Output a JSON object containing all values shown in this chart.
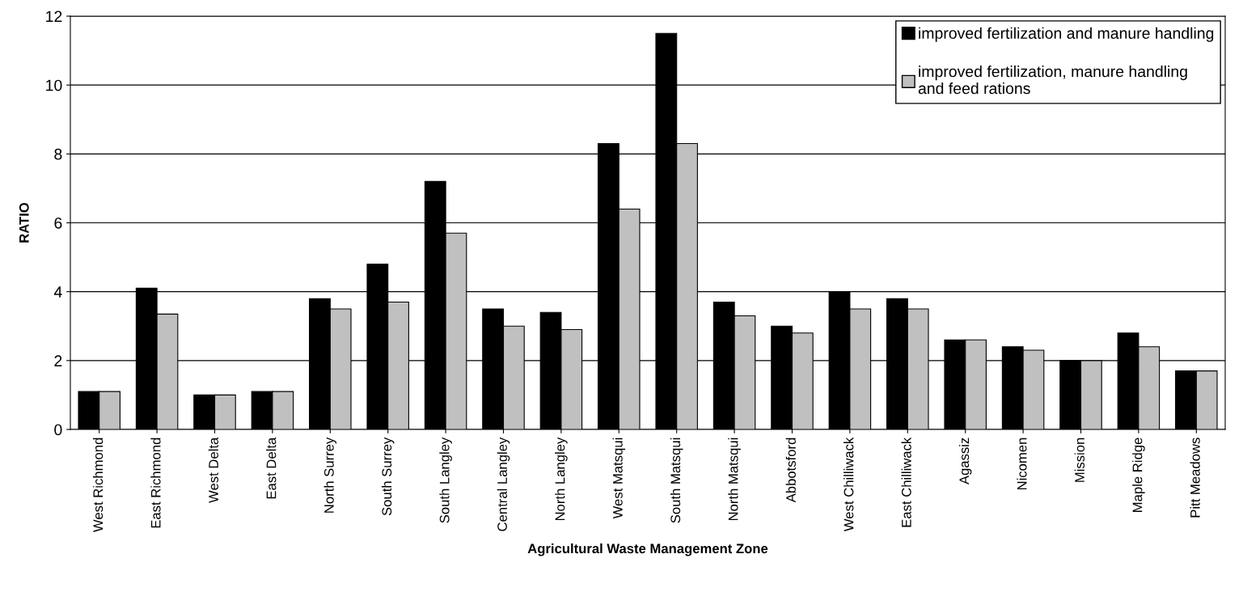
{
  "chart_data": {
    "type": "bar",
    "xlabel": "Agricultural Waste Management Zone",
    "ylabel": "RATIO",
    "categories": [
      "West Richmond",
      "East Richmond",
      "West Delta",
      "East Delta",
      "North Surrey",
      "South Surrey",
      "South Langley",
      "Central Langley",
      "North Langley",
      "West Matsqui",
      "South Matsqui",
      "North Matsqui",
      "Abbotsford",
      "West Chilliwack",
      "East Chilliwack",
      "Agassiz",
      "Nicomen",
      "Mission",
      "Maple Ridge",
      "Pitt Meadows"
    ],
    "series": [
      {
        "name": "improved fertilization and manure handling",
        "color": "#000000",
        "values": [
          1.1,
          4.1,
          1.0,
          1.1,
          3.8,
          4.8,
          7.2,
          3.5,
          3.4,
          8.3,
          11.5,
          3.7,
          3.0,
          4.0,
          3.8,
          2.6,
          2.4,
          2.0,
          2.8,
          1.7
        ]
      },
      {
        "name": "improved fertilization, manure handling and feed rations",
        "color": "#c0c0c0",
        "values": [
          1.1,
          3.35,
          1.0,
          1.1,
          3.5,
          3.7,
          5.7,
          3.0,
          2.9,
          6.4,
          8.3,
          3.3,
          2.8,
          3.5,
          3.5,
          2.6,
          2.3,
          2.0,
          2.4,
          1.7
        ]
      }
    ],
    "ylim": [
      0,
      12
    ],
    "yticks": [
      0,
      2,
      4,
      6,
      8,
      10,
      12
    ],
    "grid": "y",
    "legend": "top right"
  }
}
